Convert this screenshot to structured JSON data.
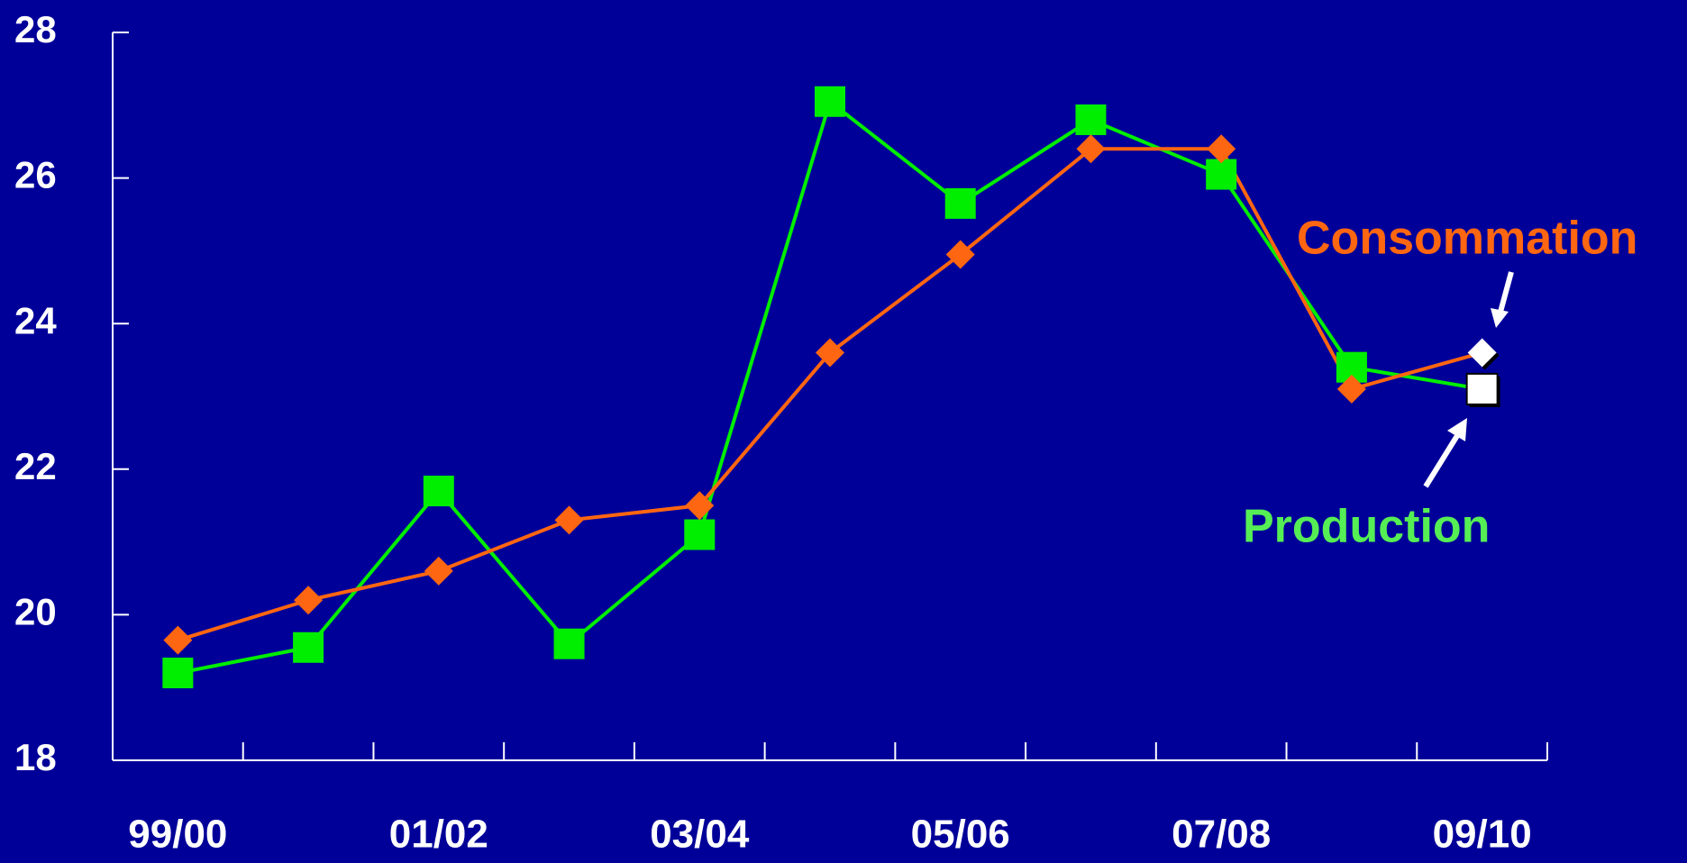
{
  "chart_data": {
    "type": "line",
    "categories": [
      "99/00",
      null,
      "01/02",
      null,
      "03/04",
      null,
      "05/06",
      null,
      "07/08",
      null,
      "09/10"
    ],
    "series": [
      {
        "name": "Production",
        "color": "#00ee00",
        "label_color": "#55ee55",
        "marker": "square",
        "values": [
          19.2,
          19.55,
          21.7,
          19.6,
          21.1,
          27.05,
          25.65,
          26.8,
          26.05,
          23.4,
          23.1
        ]
      },
      {
        "name": "Consommation",
        "color": "#ff6611",
        "label_color": "#ff6611",
        "marker": "diamond",
        "values": [
          19.65,
          20.2,
          20.6,
          21.3,
          21.5,
          23.6,
          24.95,
          26.4,
          26.4,
          23.1,
          23.6
        ]
      }
    ],
    "ylim": [
      18,
      28
    ],
    "yticks": [
      18,
      20,
      22,
      24,
      26,
      28
    ],
    "grid": false
  }
}
